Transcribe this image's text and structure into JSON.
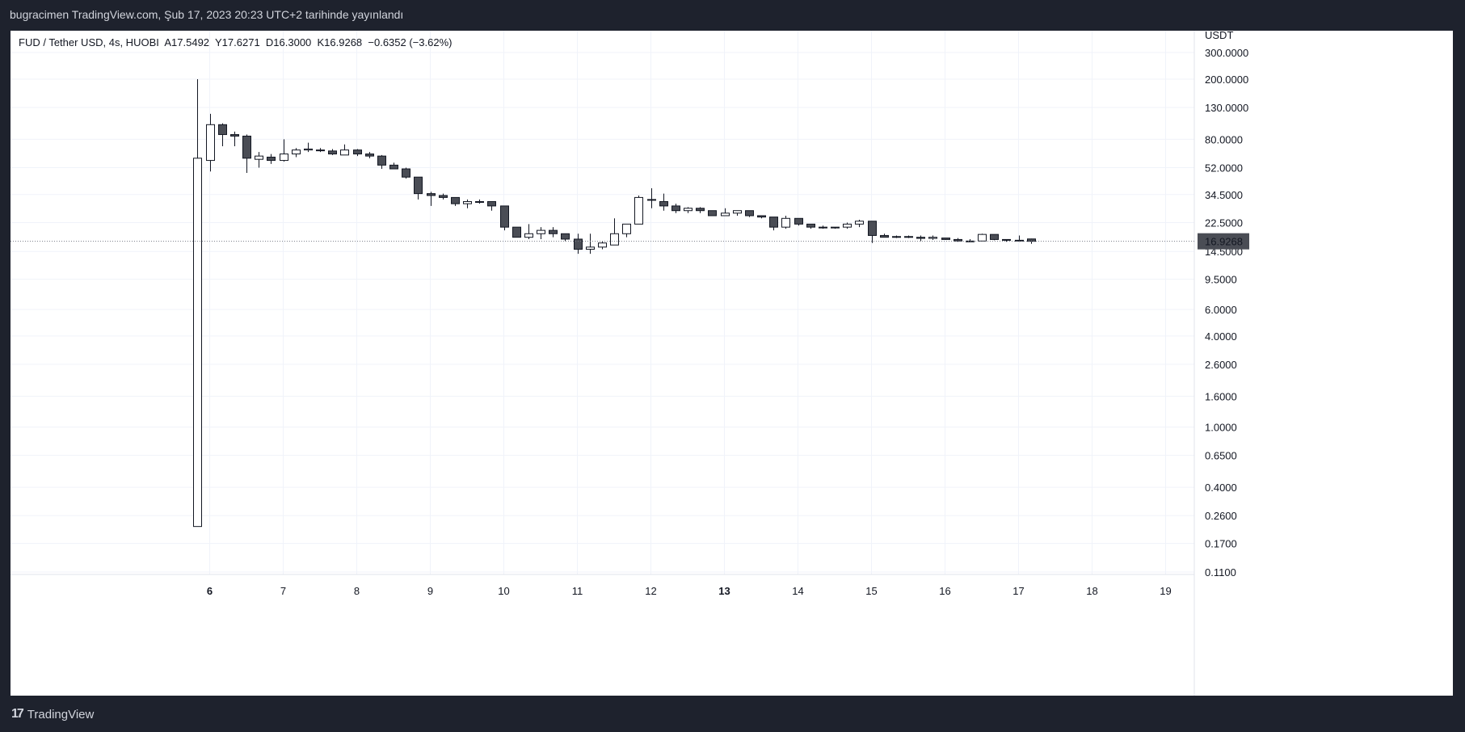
{
  "header": {
    "publish_line": "bugracimen TradingView.com, Şub 17, 2023 20:23 UTC+2 tarihinde yayınlandı"
  },
  "legend": {
    "text": "FUD / Tether USD, 4s, HUOBI  A17.5492  Y17.6271  D16.3000  K16.9268  −0.6352 (−3.62%)"
  },
  "footer": {
    "brand": "TradingView",
    "brand_icon": "tradingview-logo-icon"
  },
  "chart_data": {
    "type": "candlestick",
    "symbol": "FUD / Tether USD",
    "interval": "4s",
    "exchange": "HUOBI",
    "ohlc_legend": {
      "open": 17.5492,
      "high": 17.6271,
      "low": 16.3,
      "close": 16.9268,
      "change": -0.6352,
      "change_pct": -3.62
    },
    "y_unit": "USDT",
    "y_scale": "log",
    "y_ticks": [
      "300.0000",
      "200.0000",
      "130.0000",
      "80.0000",
      "52.0000",
      "34.5000",
      "22.5000",
      "14.5000",
      "9.5000",
      "6.0000",
      "4.0000",
      "2.6000",
      "1.6000",
      "1.0000",
      "0.6500",
      "0.4000",
      "0.2600",
      "0.1700",
      "0.1100"
    ],
    "x_ticks": [
      {
        "day": 6,
        "label": "6",
        "bold": true
      },
      {
        "day": 7,
        "label": "7"
      },
      {
        "day": 8,
        "label": "8"
      },
      {
        "day": 9,
        "label": "9"
      },
      {
        "day": 10,
        "label": "10"
      },
      {
        "day": 11,
        "label": "11"
      },
      {
        "day": 12,
        "label": "12"
      },
      {
        "day": 13,
        "label": "13",
        "bold": true
      },
      {
        "day": 14,
        "label": "14"
      },
      {
        "day": 15,
        "label": "15"
      },
      {
        "day": 16,
        "label": "16"
      },
      {
        "day": 17,
        "label": "17"
      },
      {
        "day": 18,
        "label": "18"
      },
      {
        "day": 19,
        "label": "19"
      }
    ],
    "last_price": 16.9268,
    "last_price_label": "16.9268",
    "grid": true,
    "colors": {
      "up_body": "#ffffff",
      "down_body": "#4a4d55",
      "outline": "#131722",
      "axis_text": "#131722",
      "last_price_bg": "#4a4d55"
    },
    "candles": [
      {
        "open": 0.22,
        "high": 200,
        "low": 0.22,
        "close": 60
      },
      {
        "open": 58,
        "high": 118,
        "low": 49,
        "close": 100
      },
      {
        "open": 100,
        "high": 102,
        "low": 72,
        "close": 86
      },
      {
        "open": 86,
        "high": 90,
        "low": 72,
        "close": 84
      },
      {
        "open": 84,
        "high": 86,
        "low": 48,
        "close": 60
      },
      {
        "open": 59,
        "high": 66,
        "low": 52,
        "close": 62
      },
      {
        "open": 61,
        "high": 64,
        "low": 55,
        "close": 58
      },
      {
        "open": 58,
        "high": 80,
        "low": 57,
        "close": 64
      },
      {
        "open": 64,
        "high": 70,
        "low": 61,
        "close": 68
      },
      {
        "open": 68,
        "high": 76,
        "low": 66,
        "close": 69
      },
      {
        "open": 68,
        "high": 70,
        "low": 66,
        "close": 68
      },
      {
        "open": 67,
        "high": 69,
        "low": 63,
        "close": 64
      },
      {
        "open": 63,
        "high": 74,
        "low": 63,
        "close": 68
      },
      {
        "open": 68,
        "high": 69,
        "low": 62,
        "close": 64
      },
      {
        "open": 64,
        "high": 66,
        "low": 60,
        "close": 62
      },
      {
        "open": 62,
        "high": 63,
        "low": 51,
        "close": 54
      },
      {
        "open": 54,
        "high": 56,
        "low": 51,
        "close": 51
      },
      {
        "open": 51,
        "high": 52,
        "low": 44,
        "close": 45
      },
      {
        "open": 45,
        "high": 45,
        "low": 32,
        "close": 35
      },
      {
        "open": 35,
        "high": 36,
        "low": 29,
        "close": 34
      },
      {
        "open": 34,
        "high": 35,
        "low": 32,
        "close": 33
      },
      {
        "open": 33,
        "high": 33,
        "low": 29,
        "close": 30
      },
      {
        "open": 30,
        "high": 32,
        "low": 28,
        "close": 31
      },
      {
        "open": 31,
        "high": 32,
        "low": 30,
        "close": 31
      },
      {
        "open": 31,
        "high": 31,
        "low": 27,
        "close": 29
      },
      {
        "open": 29,
        "high": 29,
        "low": 20,
        "close": 21
      },
      {
        "open": 21,
        "high": 21,
        "low": 18,
        "close": 18
      },
      {
        "open": 18,
        "high": 22,
        "low": 17.5,
        "close": 19
      },
      {
        "open": 19,
        "high": 21,
        "low": 17.5,
        "close": 20
      },
      {
        "open": 20,
        "high": 21,
        "low": 18,
        "close": 19
      },
      {
        "open": 19,
        "high": 19,
        "low": 17,
        "close": 17.5
      },
      {
        "open": 17.5,
        "high": 19,
        "low": 14,
        "close": 15
      },
      {
        "open": 15,
        "high": 19,
        "low": 14,
        "close": 15.5
      },
      {
        "open": 15.5,
        "high": 17,
        "low": 15,
        "close": 16.5
      },
      {
        "open": 16,
        "high": 24,
        "low": 16,
        "close": 19
      },
      {
        "open": 19,
        "high": 21,
        "low": 18,
        "close": 22
      },
      {
        "open": 22,
        "high": 34,
        "low": 22,
        "close": 33
      },
      {
        "open": 32,
        "high": 38,
        "low": 28,
        "close": 32
      },
      {
        "open": 31,
        "high": 35,
        "low": 27,
        "close": 29
      },
      {
        "open": 29,
        "high": 30,
        "low": 26,
        "close": 27
      },
      {
        "open": 27,
        "high": 28.5,
        "low": 26,
        "close": 28
      },
      {
        "open": 28,
        "high": 28.5,
        "low": 26,
        "close": 27
      },
      {
        "open": 27,
        "high": 27,
        "low": 25,
        "close": 25
      },
      {
        "open": 25,
        "high": 28,
        "low": 25,
        "close": 26
      },
      {
        "open": 26,
        "high": 27,
        "low": 25,
        "close": 27
      },
      {
        "open": 27,
        "high": 27,
        "low": 24.5,
        "close": 25
      },
      {
        "open": 25,
        "high": 25,
        "low": 24,
        "close": 24.5
      },
      {
        "open": 24.5,
        "high": 24.5,
        "low": 20,
        "close": 21
      },
      {
        "open": 21,
        "high": 25,
        "low": 20.5,
        "close": 24
      },
      {
        "open": 24,
        "high": 24,
        "low": 21.5,
        "close": 22
      },
      {
        "open": 22,
        "high": 22,
        "low": 20.5,
        "close": 21
      },
      {
        "open": 21,
        "high": 21.5,
        "low": 20.5,
        "close": 20.8
      },
      {
        "open": 20.8,
        "high": 21,
        "low": 20.5,
        "close": 21
      },
      {
        "open": 21,
        "high": 22.5,
        "low": 20.5,
        "close": 22
      },
      {
        "open": 22,
        "high": 23.5,
        "low": 21,
        "close": 23
      },
      {
        "open": 23,
        "high": 23,
        "low": 16.5,
        "close": 18.5
      },
      {
        "open": 18.5,
        "high": 19,
        "low": 18,
        "close": 18
      },
      {
        "open": 18,
        "high": 18.5,
        "low": 17.8,
        "close": 18.2
      },
      {
        "open": 18.2,
        "high": 18.5,
        "low": 17.8,
        "close": 18
      },
      {
        "open": 18,
        "high": 18.5,
        "low": 17,
        "close": 17.7
      },
      {
        "open": 17.7,
        "high": 18.5,
        "low": 17.3,
        "close": 18
      },
      {
        "open": 17.8,
        "high": 17.8,
        "low": 17.3,
        "close": 17.4
      },
      {
        "open": 17.4,
        "high": 17.8,
        "low": 16.8,
        "close": 17
      },
      {
        "open": 17,
        "high": 17.5,
        "low": 16.8,
        "close": 17
      },
      {
        "open": 17,
        "high": 19,
        "low": 17,
        "close": 18.8
      },
      {
        "open": 18.8,
        "high": 18.8,
        "low": 17.2,
        "close": 17.4
      },
      {
        "open": 17.4,
        "high": 17.5,
        "low": 16.8,
        "close": 17.2
      },
      {
        "open": 17.2,
        "high": 18.5,
        "low": 16.8,
        "close": 17
      },
      {
        "open": 17.5492,
        "high": 17.6271,
        "low": 16.3,
        "close": 16.9268
      }
    ]
  }
}
